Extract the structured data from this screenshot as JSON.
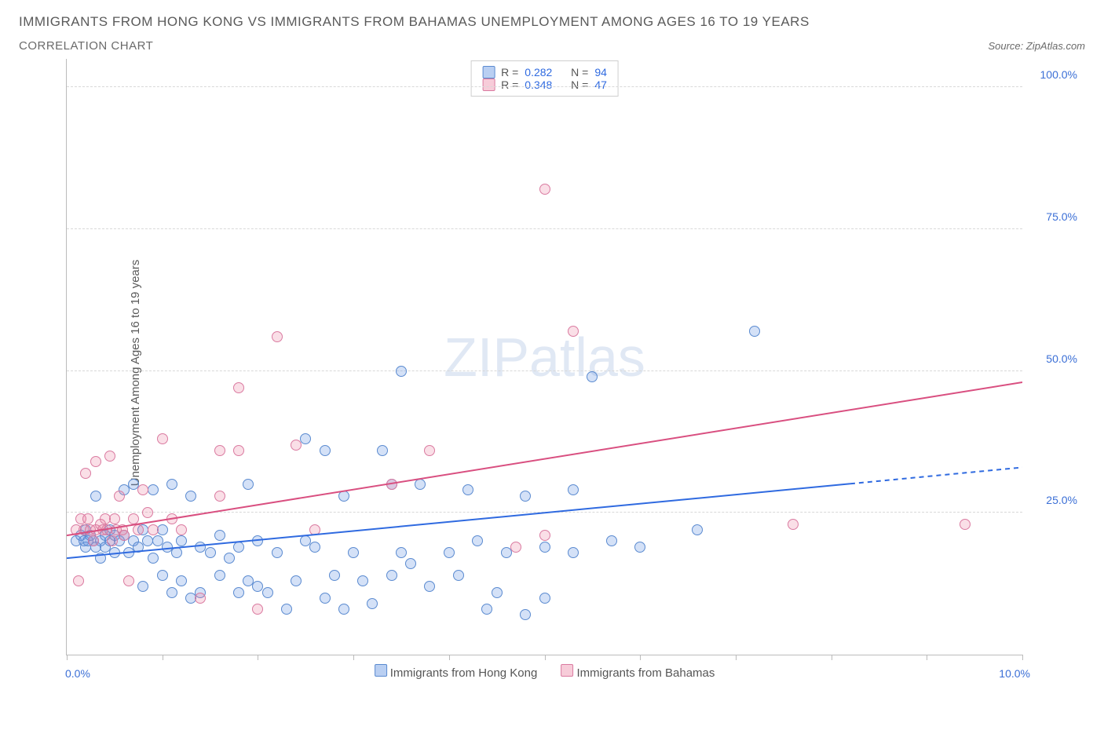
{
  "title": "IMMIGRANTS FROM HONG KONG VS IMMIGRANTS FROM BAHAMAS UNEMPLOYMENT AMONG AGES 16 TO 19 YEARS",
  "subtitle": "CORRELATION CHART",
  "source": "Source: ZipAtlas.com",
  "watermark": "ZIPatlas",
  "chart": {
    "type": "scatter",
    "ylabel": "Unemployment Among Ages 16 to 19 years",
    "xlim": [
      0,
      10
    ],
    "ylim": [
      0,
      105
    ],
    "x_tick_positions": [
      0,
      1,
      2,
      3,
      4,
      5,
      6,
      7,
      8,
      9,
      10
    ],
    "x_tick_labels": {
      "0": "0.0%",
      "10": "10.0%"
    },
    "y_ticks": [
      25,
      50,
      75,
      100
    ],
    "y_tick_labels": [
      "25.0%",
      "50.0%",
      "75.0%",
      "100.0%"
    ],
    "grid_color": "#d8d8d8",
    "axis_color": "#bbbbbb",
    "background_color": "#ffffff",
    "tick_label_color": "#3b6fd6",
    "axis_label_color": "#5a5a5a",
    "marker_radius": 7,
    "series": [
      {
        "name": "Immigrants from Hong Kong",
        "color_fill": "rgba(99,148,226,0.28)",
        "color_border": "#5a8ad0",
        "R": "0.282",
        "N": "94",
        "trend": {
          "y_at_x0": 17,
          "y_at_x10": 33,
          "color": "#2f6ae0",
          "dash_from_x": 8.2
        },
        "points": [
          [
            0.1,
            20
          ],
          [
            0.15,
            21
          ],
          [
            0.18,
            20
          ],
          [
            0.2,
            22
          ],
          [
            0.2,
            19
          ],
          [
            0.22,
            20
          ],
          [
            0.25,
            21
          ],
          [
            0.28,
            20
          ],
          [
            0.3,
            19
          ],
          [
            0.3,
            28
          ],
          [
            0.35,
            20
          ],
          [
            0.35,
            17
          ],
          [
            0.4,
            21
          ],
          [
            0.4,
            19
          ],
          [
            0.45,
            20
          ],
          [
            0.45,
            22
          ],
          [
            0.5,
            21
          ],
          [
            0.5,
            18
          ],
          [
            0.55,
            20
          ],
          [
            0.6,
            21
          ],
          [
            0.6,
            29
          ],
          [
            0.65,
            18
          ],
          [
            0.7,
            30
          ],
          [
            0.7,
            20
          ],
          [
            0.75,
            19
          ],
          [
            0.8,
            22
          ],
          [
            0.8,
            12
          ],
          [
            0.85,
            20
          ],
          [
            0.9,
            29
          ],
          [
            0.9,
            17
          ],
          [
            0.95,
            20
          ],
          [
            1.0,
            22
          ],
          [
            1.0,
            14
          ],
          [
            1.05,
            19
          ],
          [
            1.1,
            30
          ],
          [
            1.1,
            11
          ],
          [
            1.15,
            18
          ],
          [
            1.2,
            20
          ],
          [
            1.2,
            13
          ],
          [
            1.3,
            10
          ],
          [
            1.3,
            28
          ],
          [
            1.4,
            19
          ],
          [
            1.4,
            11
          ],
          [
            1.5,
            18
          ],
          [
            1.6,
            14
          ],
          [
            1.6,
            21
          ],
          [
            1.7,
            17
          ],
          [
            1.8,
            11
          ],
          [
            1.8,
            19
          ],
          [
            1.9,
            30
          ],
          [
            1.9,
            13
          ],
          [
            2.0,
            12
          ],
          [
            2.0,
            20
          ],
          [
            2.1,
            11
          ],
          [
            2.2,
            18
          ],
          [
            2.3,
            8
          ],
          [
            2.4,
            13
          ],
          [
            2.5,
            38
          ],
          [
            2.5,
            20
          ],
          [
            2.6,
            19
          ],
          [
            2.7,
            10
          ],
          [
            2.7,
            36
          ],
          [
            2.8,
            14
          ],
          [
            2.9,
            28
          ],
          [
            2.9,
            8
          ],
          [
            3.0,
            18
          ],
          [
            3.1,
            13
          ],
          [
            3.2,
            9
          ],
          [
            3.3,
            36
          ],
          [
            3.4,
            30
          ],
          [
            3.4,
            14
          ],
          [
            3.5,
            50
          ],
          [
            3.5,
            18
          ],
          [
            3.6,
            16
          ],
          [
            3.7,
            30
          ],
          [
            3.8,
            12
          ],
          [
            4.0,
            18
          ],
          [
            4.1,
            14
          ],
          [
            4.2,
            29
          ],
          [
            4.3,
            20
          ],
          [
            4.4,
            8
          ],
          [
            4.5,
            11
          ],
          [
            4.6,
            18
          ],
          [
            4.8,
            28
          ],
          [
            4.8,
            7
          ],
          [
            5.0,
            19
          ],
          [
            5.0,
            10
          ],
          [
            5.3,
            18
          ],
          [
            5.5,
            49
          ],
          [
            5.3,
            29
          ],
          [
            5.7,
            20
          ],
          [
            6.0,
            19
          ],
          [
            6.6,
            22
          ],
          [
            7.2,
            57
          ]
        ]
      },
      {
        "name": "Immigrants from Bahamas",
        "color_fill": "rgba(236,128,160,0.25)",
        "color_border": "#da7aa0",
        "R": "0.348",
        "N": "47",
        "trend": {
          "y_at_x0": 21,
          "y_at_x10": 48,
          "color": "#d94f80",
          "dash_from_x": null
        },
        "points": [
          [
            0.1,
            22
          ],
          [
            0.12,
            13
          ],
          [
            0.15,
            24
          ],
          [
            0.18,
            22
          ],
          [
            0.2,
            32
          ],
          [
            0.22,
            24
          ],
          [
            0.25,
            22
          ],
          [
            0.28,
            20
          ],
          [
            0.3,
            34
          ],
          [
            0.3,
            22
          ],
          [
            0.35,
            23
          ],
          [
            0.38,
            22
          ],
          [
            0.4,
            24
          ],
          [
            0.42,
            22
          ],
          [
            0.45,
            35
          ],
          [
            0.48,
            20
          ],
          [
            0.5,
            24
          ],
          [
            0.52,
            22
          ],
          [
            0.55,
            28
          ],
          [
            0.58,
            22
          ],
          [
            0.6,
            21
          ],
          [
            0.65,
            13
          ],
          [
            0.7,
            24
          ],
          [
            0.75,
            22
          ],
          [
            0.8,
            29
          ],
          [
            0.85,
            25
          ],
          [
            0.9,
            22
          ],
          [
            1.0,
            38
          ],
          [
            1.1,
            24
          ],
          [
            1.2,
            22
          ],
          [
            1.4,
            10
          ],
          [
            1.6,
            36
          ],
          [
            1.6,
            28
          ],
          [
            1.8,
            36
          ],
          [
            1.8,
            47
          ],
          [
            2.0,
            8
          ],
          [
            2.2,
            56
          ],
          [
            2.4,
            37
          ],
          [
            2.6,
            22
          ],
          [
            3.4,
            30
          ],
          [
            3.8,
            36
          ],
          [
            4.7,
            19
          ],
          [
            5.0,
            21
          ],
          [
            5.0,
            82
          ],
          [
            5.3,
            57
          ],
          [
            7.6,
            23
          ],
          [
            9.4,
            23
          ]
        ]
      }
    ],
    "legend_bottom": [
      "Immigrants from Hong Kong",
      "Immigrants from Bahamas"
    ]
  }
}
